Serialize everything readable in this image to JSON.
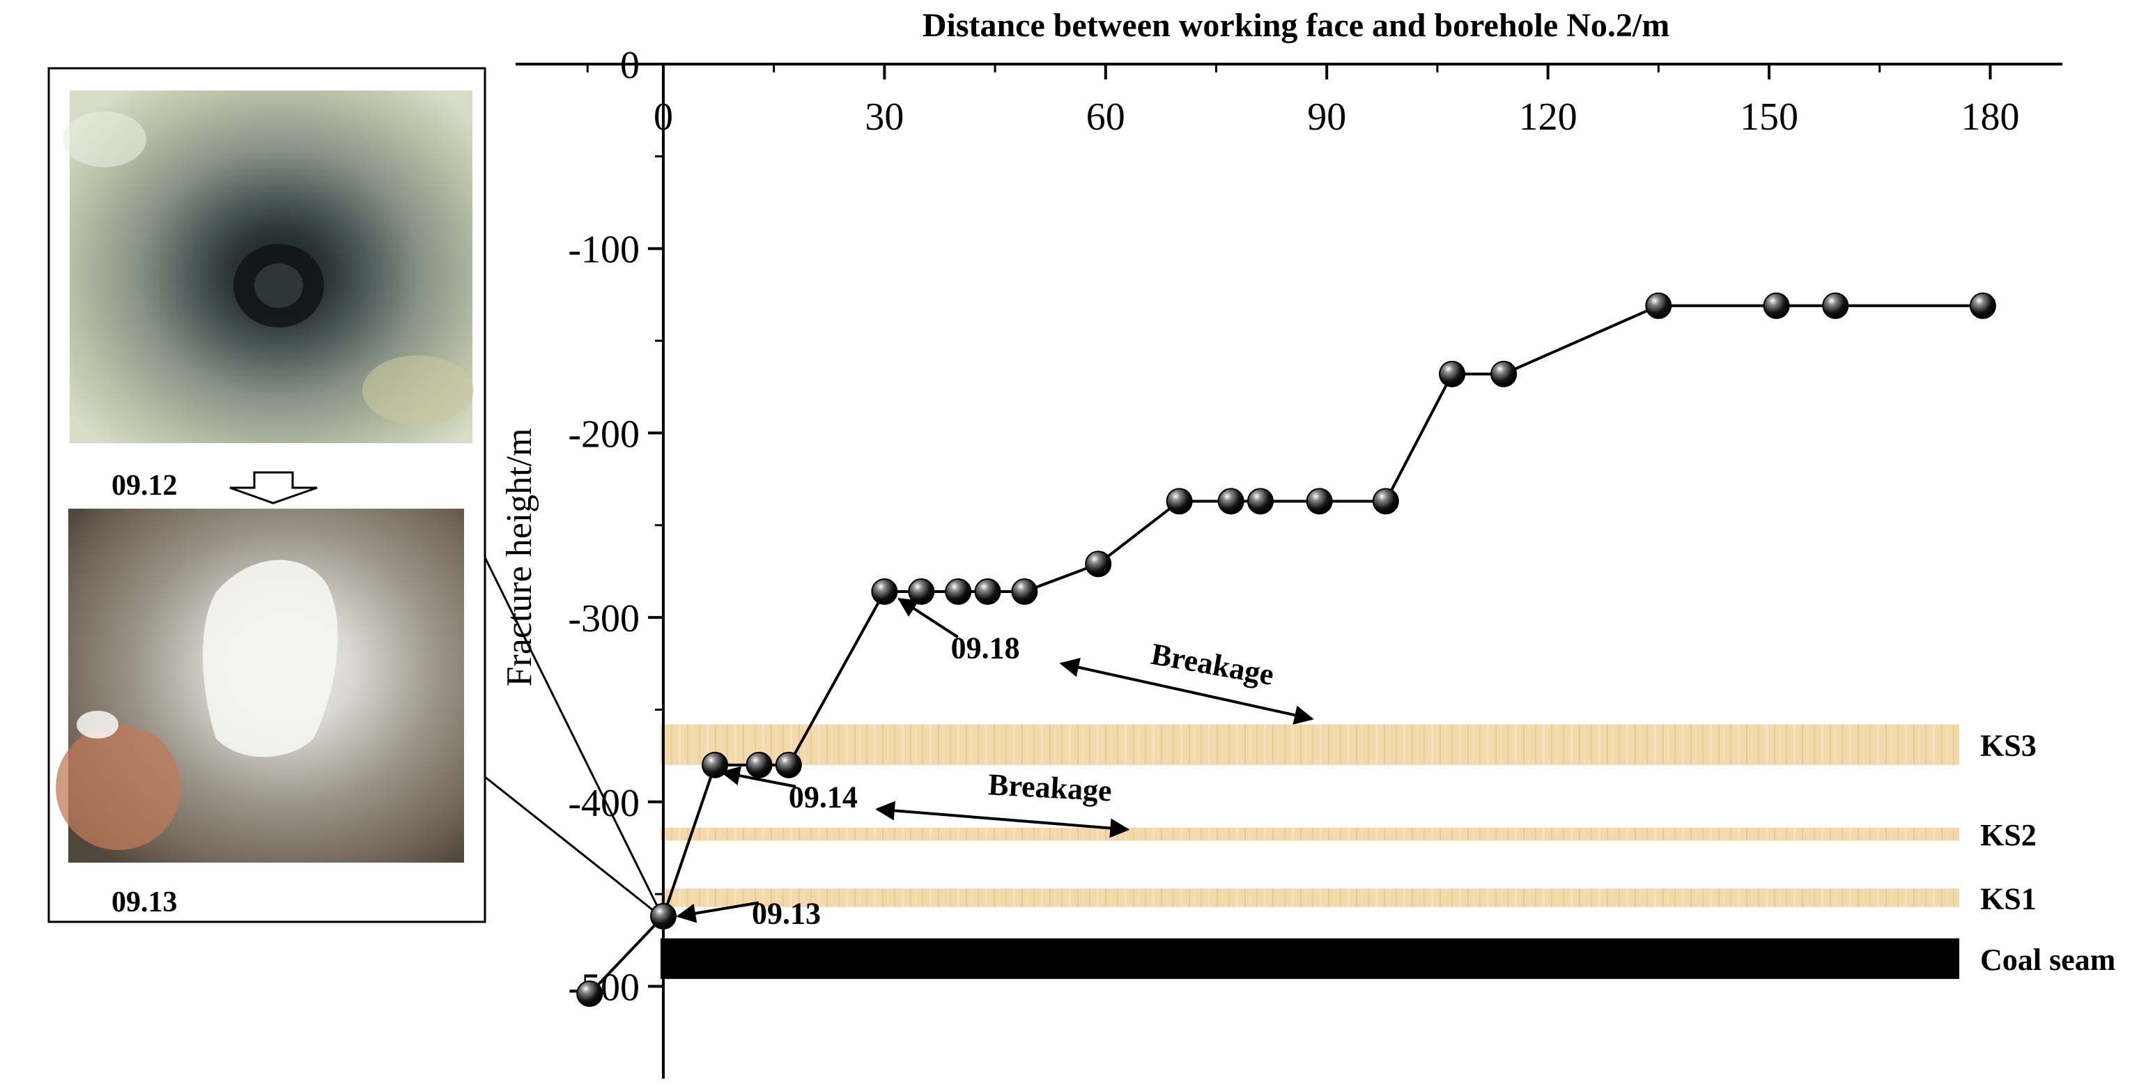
{
  "inset": {
    "photo_top_label": "09.12",
    "photo_bottom_label": "09.13"
  },
  "chart_data": {
    "type": "line",
    "title": "Distance between working face and borehole No.2/m",
    "xlabel": "Distance between working face and borehole No.2/m",
    "ylabel": "Fracture height/m",
    "x_axis_position": "top",
    "xlim": [
      -10,
      190
    ],
    "ylim": [
      -520,
      0
    ],
    "x_ticks": [
      0,
      30,
      60,
      90,
      120,
      150,
      180
    ],
    "y_ticks": [
      0,
      -100,
      -200,
      -300,
      -400,
      -500
    ],
    "x_tick_labels": [
      "0",
      "30",
      "60",
      "90",
      "120",
      "150",
      "180"
    ],
    "y_tick_labels": [
      "0",
      "-100",
      "-200",
      "-300",
      "-400",
      "-500"
    ],
    "grid": false,
    "series": [
      {
        "x": [
          -10,
          0,
          7,
          13,
          17,
          30,
          35,
          40,
          44,
          49,
          59,
          70,
          77,
          81,
          89,
          98,
          107,
          114,
          135,
          151,
          159,
          179
        ],
        "y": [
          -504,
          -462,
          -380,
          -380,
          -380,
          -286,
          -286,
          -286,
          -286,
          -286,
          -271,
          -237,
          -237,
          -237,
          -237,
          -237,
          -168,
          -168,
          -131,
          -131,
          -131,
          -131
        ]
      }
    ],
    "strata": [
      {
        "label": "KS3",
        "top": -358,
        "bottom": -380,
        "color": "#f2d7a8"
      },
      {
        "label": "KS2",
        "top": -414,
        "bottom": -421,
        "color": "#f2d7a8"
      },
      {
        "label": "KS1",
        "top": -447,
        "bottom": -457,
        "color": "#f2d7a8"
      },
      {
        "label": "Coal seam",
        "top": -474,
        "bottom": -496,
        "color": "#000000"
      }
    ],
    "annotations": [
      {
        "text": "09.18",
        "x": 39,
        "y": -322,
        "arrow_to": [
          32,
          -290
        ]
      },
      {
        "text": "09.14",
        "x": 17,
        "y": -403,
        "arrow_to": [
          8,
          -384
        ]
      },
      {
        "text": "09.13",
        "x": 12,
        "y": -466,
        "arrow_to": [
          2,
          -462
        ]
      },
      {
        "text": "Breakage",
        "x": 66,
        "y": -325,
        "rotate": 10
      },
      {
        "text": "Breakage",
        "x": 44,
        "y": -396,
        "rotate": 3
      }
    ],
    "breakage_arrows": [
      {
        "from": [
          54,
          -325
        ],
        "to": [
          88,
          -355
        ]
      },
      {
        "from": [
          29,
          -404
        ],
        "to": [
          63,
          -415
        ]
      }
    ]
  }
}
